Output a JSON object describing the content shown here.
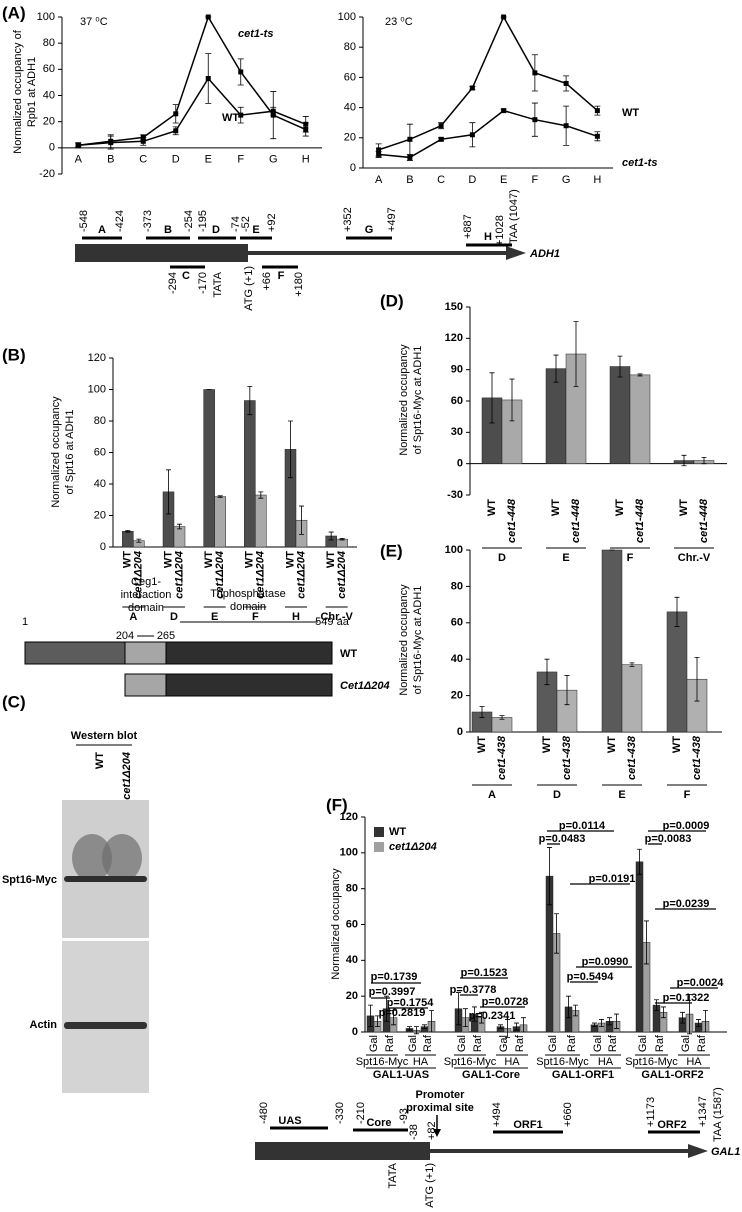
{
  "panel_labels": [
    "(A)",
    "(B)",
    "(C)",
    "(D)",
    "(E)",
    "(F)"
  ],
  "chart_data": [
    {
      "type": "line",
      "title": "37 ⁰C",
      "y_label": [
        "Normalized occupancy of",
        "Rpb1 at ADH1"
      ],
      "categories": [
        "A",
        "B",
        "C",
        "D",
        "E",
        "F",
        "G",
        "H"
      ],
      "ylim": [
        -20,
        100
      ],
      "yticks": [
        -20,
        0,
        20,
        40,
        60,
        80,
        100
      ],
      "series": [
        {
          "name": "cet1-ts",
          "color": "#000000",
          "values": [
            2,
            5,
            8,
            26,
            100,
            58,
            25,
            14
          ],
          "errors": [
            1,
            5,
            2,
            7,
            0,
            10,
            18,
            5
          ]
        },
        {
          "name": "WT",
          "color": "#000000",
          "values": [
            2,
            4,
            5,
            13,
            53,
            25,
            28,
            18
          ],
          "errors": [
            2,
            5,
            3,
            3,
            19,
            6,
            3,
            6
          ]
        }
      ]
    },
    {
      "type": "line",
      "title": "23 ⁰C",
      "categories": [
        "A",
        "B",
        "C",
        "D",
        "E",
        "F",
        "G",
        "H"
      ],
      "ylim": [
        0,
        100
      ],
      "yticks": [
        0,
        20,
        40,
        60,
        80,
        100
      ],
      "series": [
        {
          "name": "WT",
          "color": "#000000",
          "values": [
            12,
            19,
            28,
            53,
            100,
            63,
            56,
            38
          ],
          "errors": [
            4,
            10,
            2,
            1,
            0,
            12,
            5,
            3
          ]
        },
        {
          "name": "cet1-ts",
          "color": "#000000",
          "values": [
            9,
            7,
            19,
            22,
            38,
            32,
            28,
            21
          ],
          "errors": [
            2,
            2,
            1,
            8,
            1,
            11,
            13,
            3
          ]
        }
      ]
    },
    {
      "type": "bar",
      "y_label": [
        "Normalized occupancy",
        "of Spt16 at ADH1"
      ],
      "categories": [
        "A",
        "D",
        "E",
        "F",
        "H",
        "Chr.-V"
      ],
      "ylim": [
        0,
        120
      ],
      "yticks": [
        0,
        20,
        40,
        60,
        80,
        100,
        120
      ],
      "series": [
        {
          "name": "WT",
          "color": "#4d4d4d",
          "values": [
            10,
            35,
            100,
            93,
            62,
            7
          ],
          "errors": [
            0.5,
            14,
            0,
            9,
            18,
            2.5
          ]
        },
        {
          "name": "cet1Δ204",
          "color": "#a9a9a9",
          "values": [
            4,
            13,
            32,
            33,
            17,
            5
          ],
          "errors": [
            1,
            1.5,
            0.5,
            2,
            9,
            0.5
          ]
        }
      ]
    },
    {
      "type": "bar",
      "y_label": [
        "Normalized occupancy",
        "of Spt16-Myc at ADH1"
      ],
      "categories": [
        "D",
        "E",
        "F",
        "Chr.-V"
      ],
      "ylim": [
        -30,
        150
      ],
      "yticks": [
        -30,
        0,
        30,
        60,
        90,
        120,
        150
      ],
      "series": [
        {
          "name": "WT",
          "color": "#4d4d4d",
          "values": [
            63,
            91,
            93,
            3
          ],
          "errors": [
            24,
            13,
            10,
            5
          ]
        },
        {
          "name": "cet1-448",
          "color": "#a9a9a9",
          "values": [
            61,
            105,
            85,
            3
          ],
          "errors": [
            20,
            31,
            1,
            3
          ]
        }
      ]
    },
    {
      "type": "bar",
      "y_label": [
        "Normalized occupancy",
        "of Spt16-Myc at ADH1"
      ],
      "categories": [
        "A",
        "D",
        "E",
        "F"
      ],
      "ylim": [
        0,
        100
      ],
      "yticks": [
        0,
        20,
        40,
        60,
        80,
        100
      ],
      "series": [
        {
          "name": "WT",
          "color": "#5a5a5a",
          "values": [
            11,
            33,
            100,
            66
          ],
          "errors": [
            3,
            7,
            0,
            8
          ]
        },
        {
          "name": "cet1-438",
          "color": "#b0b0b0",
          "values": [
            8,
            23,
            37,
            29
          ],
          "errors": [
            1,
            8,
            1,
            12
          ]
        }
      ]
    },
    {
      "type": "bar",
      "y_label": [
        "Normalized occupancy"
      ],
      "legend": "top-left",
      "categories": [
        "Gal",
        "Raf",
        "Gal",
        "Raf",
        "Gal",
        "Raf",
        "Gal",
        "Raf",
        "Gal",
        "Raf",
        "Gal",
        "Raf",
        "Gal",
        "Raf",
        "Gal",
        "Raf"
      ],
      "subgroups": [
        "Spt16-Myc",
        "HA",
        "Spt16-Myc",
        "HA",
        "Spt16-Myc",
        "HA",
        "Spt16-Myc",
        "HA"
      ],
      "groups": [
        "GAL1-UAS",
        "GAL1-Core",
        "GAL1-ORF1",
        "GAL1-ORF2"
      ],
      "ylim": [
        0,
        120
      ],
      "yticks": [
        0,
        20,
        40,
        60,
        80,
        100,
        120
      ],
      "series": [
        {
          "name": "WT",
          "color": "#333333",
          "values": [
            9,
            13,
            2,
            3,
            13,
            10,
            3,
            3,
            87,
            14,
            4,
            6,
            95,
            15,
            8,
            5
          ],
          "errors": [
            6,
            7,
            1,
            1,
            9,
            4,
            1,
            2,
            16,
            6,
            1,
            2,
            7,
            3,
            3,
            2
          ]
        },
        {
          "name": "cet1Δ204",
          "color": "#a0a0a0",
          "values": [
            6,
            8,
            1,
            6,
            8,
            8,
            2,
            4,
            55,
            12,
            5,
            6,
            50,
            11,
            10,
            6
          ],
          "errors": [
            3,
            4,
            2,
            6,
            5,
            3,
            5,
            4,
            11,
            3,
            2,
            4,
            12,
            3,
            11,
            6
          ]
        }
      ],
      "annotations": [
        "p=0.1739",
        "p=0.3997",
        "p=0.1754",
        "p=0.2819",
        "p=0.1523",
        "p=0.3778",
        "p=0.0728",
        "p=0.2341",
        "p=0.0114",
        "p=0.0483",
        "p=0.0191",
        "p=0.0990",
        "p=0.5494",
        "p=0.0009",
        "p=0.0083",
        "p=0.0239",
        "p=0.0024",
        "p=0.1322"
      ]
    }
  ],
  "adh1_map": {
    "regions": [
      "A",
      "B",
      "C",
      "D",
      "E",
      "F",
      "G",
      "H"
    ],
    "coordinates": [
      "-548",
      "-424",
      "-373",
      "-254",
      "-195",
      "-74",
      "-52",
      "+92",
      "+352",
      "+497",
      "+887",
      "+1028",
      "-294",
      "-170",
      "+66",
      "+180"
    ],
    "tata": "TATA",
    "start": "ATG (+1)",
    "stop": "TAA (1047)",
    "gene": "ADH1"
  },
  "cet1_domains": {
    "positions": [
      "1",
      "204",
      "265",
      "549 aa"
    ],
    "ceg1_domain": [
      "Ceg1-",
      "interaction",
      "domain"
    ],
    "triphosphatase_domain": [
      "Triphosphatase",
      "domain"
    ],
    "constructs": [
      "WT",
      "Cet1Δ204"
    ]
  },
  "western_blot": {
    "title": "Western blot",
    "lanes": [
      "WT",
      "cet1Δ204"
    ],
    "bands": [
      "Spt16-Myc",
      "Actin"
    ]
  },
  "gal1_map": {
    "regions": [
      "UAS",
      "Core",
      "ORF1",
      "ORF2"
    ],
    "coordinates": [
      "-480",
      "-330",
      "-210",
      "-93",
      "-38",
      "+82",
      "+494",
      "+660",
      "+1173",
      "+1347"
    ],
    "site": [
      "Promoter",
      "proximal site"
    ],
    "tata": "TATA",
    "start": "ATG (+1)",
    "stop": "TAA (1587)",
    "gene": "GAL1"
  }
}
